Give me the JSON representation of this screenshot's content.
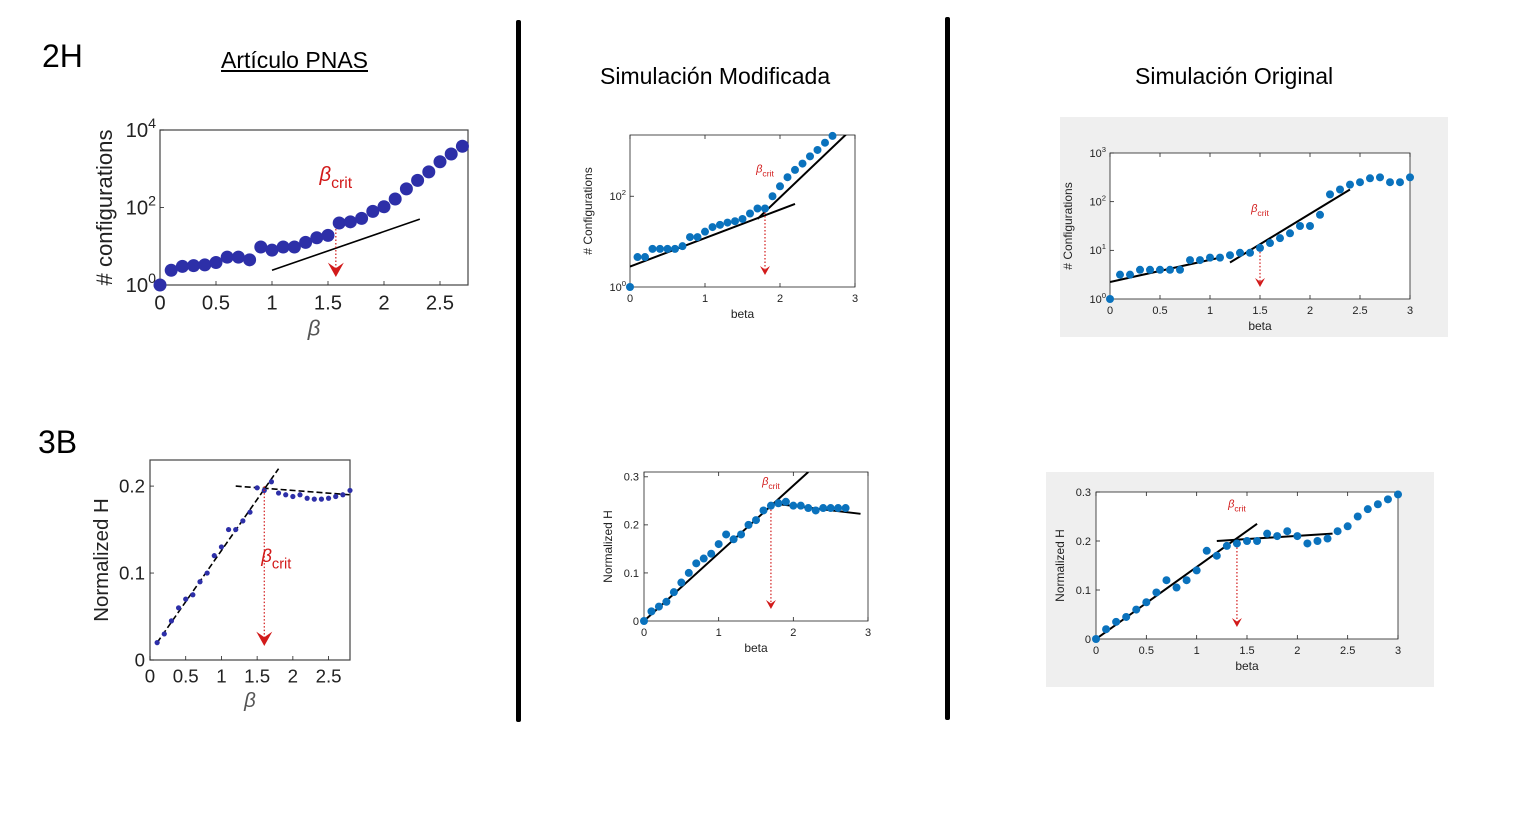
{
  "labels": {
    "fig2h": "2H",
    "fig3b": "3B"
  },
  "headings": {
    "paper": "Artículo PNAS",
    "modified": "Simulación Modificada",
    "original": "Simulación Original"
  },
  "colors": {
    "paper_dot": "#2d2fa8",
    "sim_dot": "#0a72bd",
    "arrow": "#d21a1a",
    "fit": "#000000",
    "panel_bg": "#efefef"
  },
  "chart_data": [
    {
      "id": "paper-2h",
      "type": "scatter",
      "xlabel": "β",
      "ylabel": "# configurations",
      "xlim": [
        0,
        2.75
      ],
      "ylim_log10": [
        0,
        4
      ],
      "yscale": "log",
      "xticks": [
        "0",
        "0.5",
        "1",
        "1.5",
        "2",
        "2.5"
      ],
      "yticks": [
        {
          "base": "10",
          "exp": "0"
        },
        {
          "base": "10",
          "exp": "2"
        },
        {
          "base": "10",
          "exp": "4"
        }
      ],
      "crit_label": {
        "base": "β",
        "sub": "crit"
      },
      "crit_x": 1.57,
      "x": [
        0,
        0.1,
        0.2,
        0.3,
        0.4,
        0.5,
        0.6,
        0.7,
        0.8,
        0.9,
        1.0,
        1.1,
        1.2,
        1.3,
        1.4,
        1.5,
        1.6,
        1.7,
        1.8,
        1.9,
        2.0,
        2.1,
        2.2,
        2.3,
        2.4,
        2.5,
        2.6,
        2.7
      ],
      "log10y": [
        0,
        0.38,
        0.48,
        0.5,
        0.52,
        0.58,
        0.72,
        0.72,
        0.65,
        0.98,
        0.9,
        0.98,
        0.98,
        1.1,
        1.22,
        1.28,
        1.6,
        1.63,
        1.72,
        1.9,
        2.02,
        2.22,
        2.48,
        2.7,
        2.92,
        3.18,
        3.38,
        3.58
      ],
      "fit_lines": [
        [
          [
            1.0,
            0.38
          ],
          [
            2.32,
            1.7
          ]
        ]
      ],
      "dashed_fits": false
    },
    {
      "id": "paper-3b",
      "type": "scatter",
      "xlabel": "β",
      "ylabel": "Normalized H",
      "xlim": [
        0,
        2.8
      ],
      "ylim": [
        0,
        0.23
      ],
      "xticks": [
        "0",
        "0.5",
        "1",
        "1.5",
        "2",
        "2.5"
      ],
      "yticks": [
        "0",
        "0.1",
        "0.2"
      ],
      "crit_label": {
        "base": "β",
        "sub": "crit"
      },
      "crit_x": 1.6,
      "x": [
        0.1,
        0.2,
        0.3,
        0.4,
        0.5,
        0.6,
        0.7,
        0.8,
        0.9,
        1.0,
        1.1,
        1.2,
        1.3,
        1.4,
        1.5,
        1.6,
        1.7,
        1.8,
        1.9,
        2.0,
        2.1,
        2.2,
        2.3,
        2.4,
        2.5,
        2.6,
        2.7,
        2.8
      ],
      "y": [
        0.02,
        0.03,
        0.045,
        0.06,
        0.07,
        0.075,
        0.09,
        0.1,
        0.12,
        0.13,
        0.15,
        0.15,
        0.16,
        0.17,
        0.198,
        0.195,
        0.205,
        0.192,
        0.19,
        0.188,
        0.19,
        0.186,
        0.185,
        0.185,
        0.186,
        0.188,
        0.19,
        0.195
      ],
      "fit_lines": [
        [
          [
            0.1,
            0.02
          ],
          [
            1.8,
            0.22
          ]
        ],
        [
          [
            1.2,
            0.2
          ],
          [
            2.8,
            0.19
          ]
        ]
      ],
      "dashed_fits": true
    },
    {
      "id": "modified-config",
      "type": "scatter",
      "xlabel": "beta",
      "ylabel": "# Configurations",
      "xlim": [
        0,
        3
      ],
      "ylim_log10": [
        0,
        3.35
      ],
      "yscale": "log",
      "xticks": [
        "0",
        "1",
        "2",
        "3"
      ],
      "yticks": [
        {
          "base": "10",
          "exp": "0"
        },
        {
          "base": "10",
          "exp": "2"
        }
      ],
      "crit_label": {
        "base": "β",
        "sub": "crit"
      },
      "crit_x": 1.8,
      "x": [
        0,
        0.1,
        0.2,
        0.3,
        0.4,
        0.5,
        0.6,
        0.7,
        0.8,
        0.9,
        1.0,
        1.1,
        1.2,
        1.3,
        1.4,
        1.5,
        1.6,
        1.7,
        1.8,
        1.9,
        2.0,
        2.1,
        2.2,
        2.3,
        2.4,
        2.5,
        2.6,
        2.7
      ],
      "log10y": [
        0,
        0.66,
        0.66,
        0.84,
        0.84,
        0.84,
        0.84,
        0.9,
        1.1,
        1.1,
        1.22,
        1.32,
        1.37,
        1.42,
        1.45,
        1.5,
        1.62,
        1.73,
        1.73,
        2.0,
        2.22,
        2.42,
        2.58,
        2.72,
        2.88,
        3.02,
        3.18,
        3.33
      ],
      "fit_lines": [
        [
          [
            0,
            0.45
          ],
          [
            2.2,
            1.83
          ]
        ],
        [
          [
            1.7,
            1.5
          ],
          [
            3.0,
            3.55
          ]
        ]
      ],
      "dashed_fits": false
    },
    {
      "id": "original-config",
      "type": "scatter",
      "xlabel": "beta",
      "ylabel": "# Configurations",
      "xlim": [
        0,
        3
      ],
      "ylim_log10": [
        0,
        3
      ],
      "yscale": "log",
      "xticks": [
        "0",
        "0.5",
        "1",
        "1.5",
        "2",
        "2.5",
        "3"
      ],
      "yticks": [
        {
          "base": "10",
          "exp": "0"
        },
        {
          "base": "10",
          "exp": "1"
        },
        {
          "base": "10",
          "exp": "2"
        },
        {
          "base": "10",
          "exp": "3"
        }
      ],
      "crit_label": {
        "base": "β",
        "sub": "crit"
      },
      "crit_x": 1.5,
      "x": [
        0,
        0.1,
        0.2,
        0.3,
        0.4,
        0.5,
        0.6,
        0.7,
        0.8,
        0.9,
        1.0,
        1.1,
        1.2,
        1.3,
        1.4,
        1.5,
        1.6,
        1.7,
        1.8,
        1.9,
        2.0,
        2.1,
        2.2,
        2.3,
        2.4,
        2.5,
        2.6,
        2.7,
        2.8,
        2.9,
        3.0
      ],
      "log10y": [
        0,
        0.5,
        0.5,
        0.6,
        0.6,
        0.6,
        0.6,
        0.6,
        0.8,
        0.8,
        0.85,
        0.85,
        0.9,
        0.95,
        0.95,
        1.05,
        1.15,
        1.25,
        1.35,
        1.5,
        1.5,
        1.73,
        2.15,
        2.25,
        2.35,
        2.4,
        2.48,
        2.5,
        2.4,
        2.4,
        2.5
      ],
      "fit_lines": [
        [
          [
            0,
            0.35
          ],
          [
            1.1,
            0.85
          ]
        ],
        [
          [
            1.2,
            0.75
          ],
          [
            2.4,
            2.25
          ]
        ]
      ],
      "dashed_fits": false
    },
    {
      "id": "modified-h",
      "type": "scatter",
      "xlabel": "beta",
      "ylabel": "Normalized H",
      "xlim": [
        0,
        3
      ],
      "ylim": [
        0,
        0.31
      ],
      "xticks": [
        "0",
        "1",
        "2",
        "3"
      ],
      "yticks": [
        "0",
        "0.1",
        "0.2",
        "0.3"
      ],
      "crit_label": {
        "base": "β",
        "sub": "crit"
      },
      "crit_x": 1.7,
      "x": [
        0,
        0.1,
        0.2,
        0.3,
        0.4,
        0.5,
        0.6,
        0.7,
        0.8,
        0.9,
        1.0,
        1.1,
        1.2,
        1.3,
        1.4,
        1.5,
        1.6,
        1.7,
        1.8,
        1.9,
        2.0,
        2.1,
        2.2,
        2.3,
        2.4,
        2.5,
        2.6,
        2.7
      ],
      "y": [
        0,
        0.02,
        0.03,
        0.04,
        0.06,
        0.08,
        0.1,
        0.12,
        0.13,
        0.14,
        0.16,
        0.18,
        0.17,
        0.18,
        0.2,
        0.21,
        0.23,
        0.24,
        0.245,
        0.248,
        0.24,
        0.24,
        0.235,
        0.23,
        0.235,
        0.235,
        0.235,
        0.235
      ],
      "fit_lines": [
        [
          [
            0,
            0
          ],
          [
            2.2,
            0.31
          ]
        ],
        [
          [
            1.7,
            0.245
          ],
          [
            2.9,
            0.223
          ]
        ]
      ],
      "dashed_fits": false
    },
    {
      "id": "original-h",
      "type": "scatter",
      "xlabel": "beta",
      "ylabel": "Normalized H",
      "xlim": [
        0,
        3
      ],
      "ylim": [
        0,
        0.3
      ],
      "xticks": [
        "0",
        "0.5",
        "1",
        "1.5",
        "2",
        "2.5",
        "3"
      ],
      "yticks": [
        "0",
        "0.1",
        "0.2",
        "0.3"
      ],
      "crit_label": {
        "base": "β",
        "sub": "crit"
      },
      "crit_x": 1.4,
      "x": [
        0,
        0.1,
        0.2,
        0.3,
        0.4,
        0.5,
        0.6,
        0.7,
        0.8,
        0.9,
        1.0,
        1.1,
        1.2,
        1.3,
        1.4,
        1.5,
        1.6,
        1.7,
        1.8,
        1.9,
        2.0,
        2.1,
        2.2,
        2.3,
        2.4,
        2.5,
        2.6,
        2.7,
        2.8,
        2.9,
        3.0
      ],
      "y": [
        0,
        0.02,
        0.035,
        0.045,
        0.06,
        0.075,
        0.095,
        0.12,
        0.105,
        0.12,
        0.14,
        0.18,
        0.17,
        0.19,
        0.195,
        0.2,
        0.2,
        0.215,
        0.21,
        0.22,
        0.21,
        0.195,
        0.2,
        0.205,
        0.22,
        0.23,
        0.25,
        0.265,
        0.275,
        0.285,
        0.295
      ],
      "fit_lines": [
        [
          [
            0,
            0
          ],
          [
            1.6,
            0.235
          ]
        ],
        [
          [
            1.2,
            0.2
          ],
          [
            2.35,
            0.215
          ]
        ]
      ],
      "dashed_fits": false
    }
  ]
}
